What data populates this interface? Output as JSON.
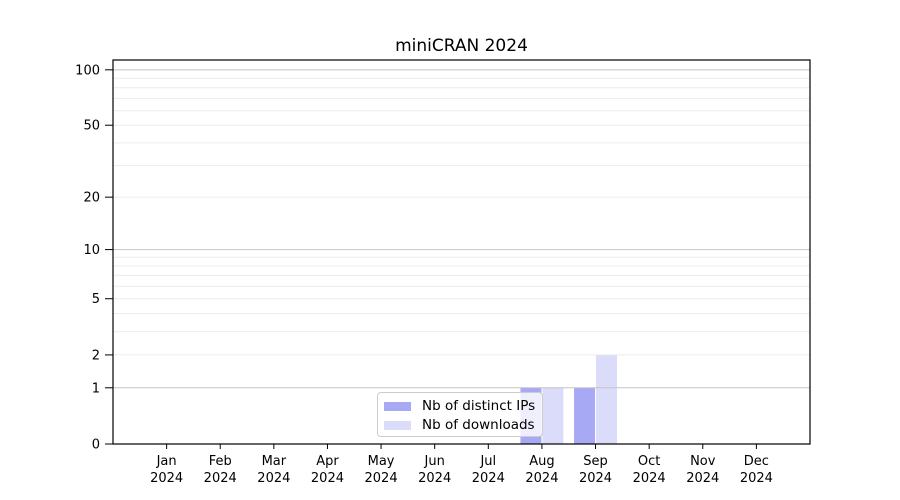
{
  "title": "miniCRAN 2024",
  "chart_data": {
    "type": "bar",
    "title": "miniCRAN 2024",
    "categories": [
      "Jan",
      "Feb",
      "Mar",
      "Apr",
      "May",
      "Jun",
      "Jul",
      "Aug",
      "Sep",
      "Oct",
      "Nov",
      "Dec"
    ],
    "x_tick_year": "2024",
    "series": [
      {
        "name": "Nb of distinct IPs",
        "color": "#a8a9f4",
        "values": [
          0,
          0,
          0,
          0,
          0,
          0,
          0,
          1,
          1,
          0,
          0,
          0
        ]
      },
      {
        "name": "Nb of downloads",
        "color": "#dbdcfa",
        "values": [
          0,
          0,
          0,
          0,
          0,
          0,
          0,
          1,
          2,
          0,
          0,
          0
        ]
      }
    ],
    "yscale": "log1p",
    "ylim": [
      0,
      113
    ],
    "y_ticks": [
      0,
      1,
      2,
      5,
      10,
      20,
      50,
      100
    ],
    "y_major_gridlines": [
      1,
      10,
      100
    ],
    "y_minor_gridlines": [
      2,
      3,
      4,
      5,
      6,
      7,
      8,
      9,
      20,
      30,
      40,
      50,
      60,
      70,
      80,
      90
    ],
    "legend_position": "lower center",
    "grid": true,
    "colors": {
      "major_grid": "#c4c4c4",
      "minor_grid": "#ececec",
      "axis": "#000000",
      "background": "#ffffff",
      "text": "#000000"
    }
  }
}
